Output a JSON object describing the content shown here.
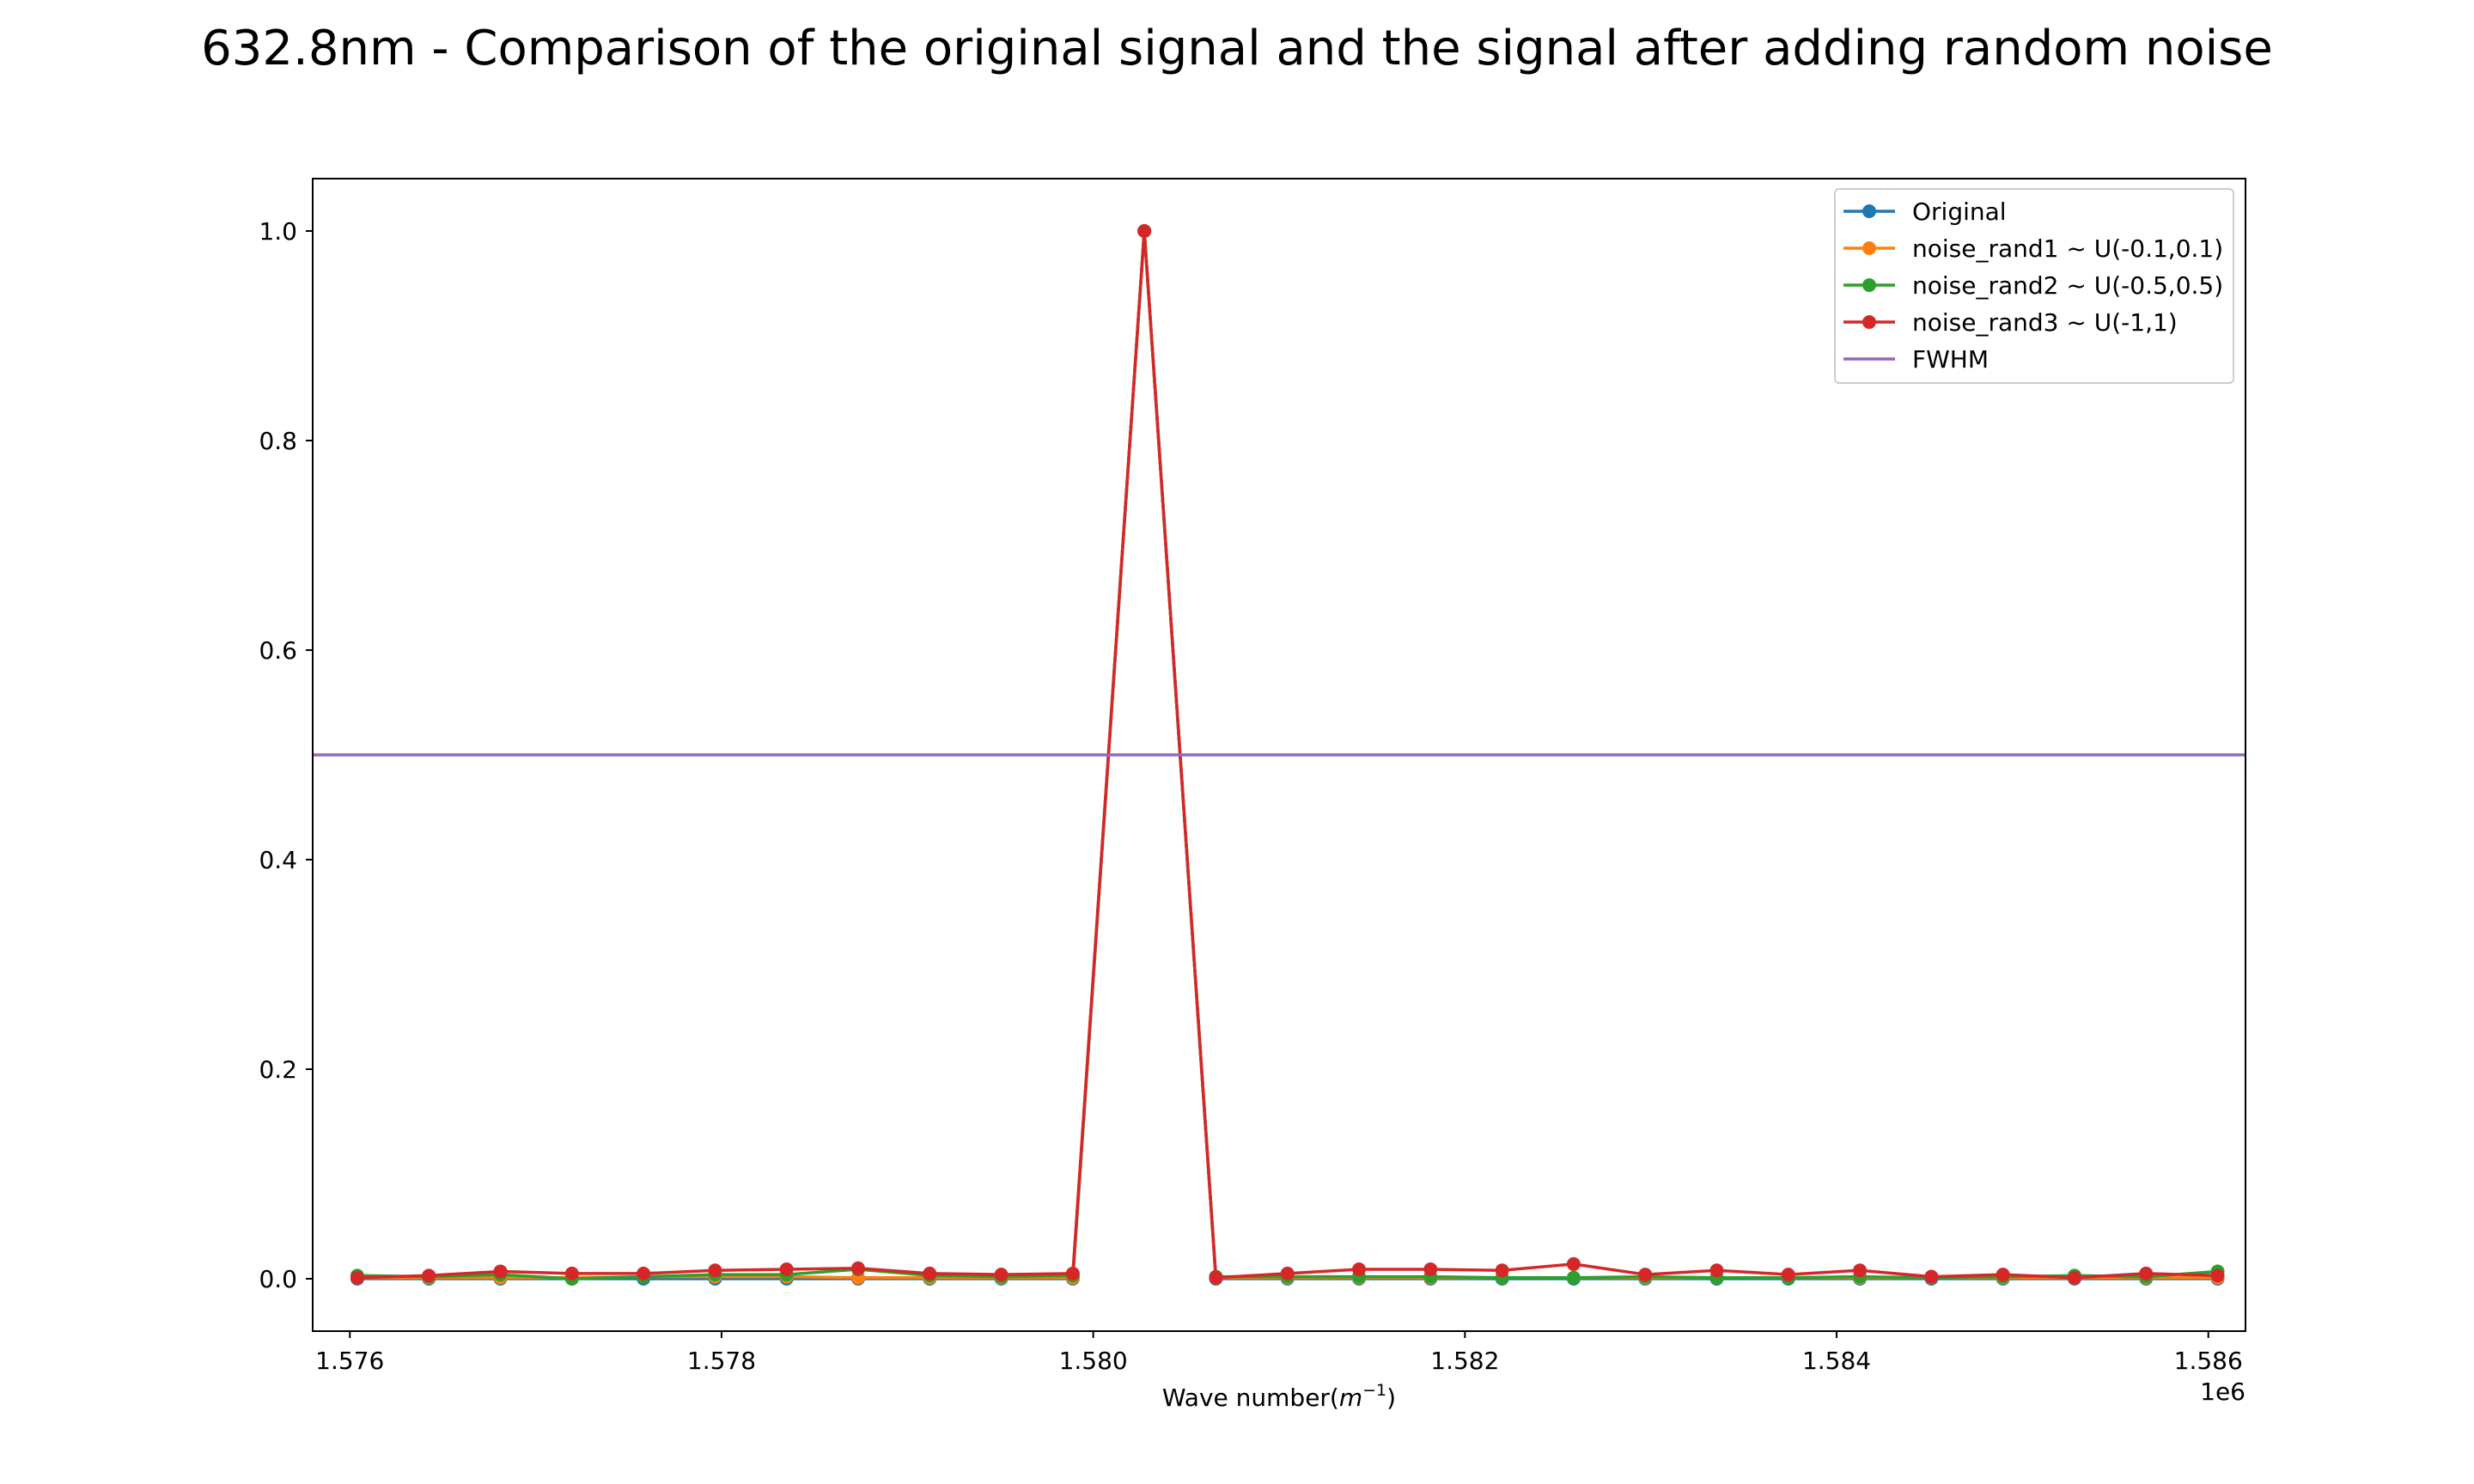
{
  "chart_data": {
    "type": "line",
    "title": "632.8nm - Comparison of the original signal and the signal after adding random noise",
    "xlabel": "Wave number(m⁻¹)",
    "xlabel_main": "Wave number(",
    "xlabel_var": "m",
    "xlabel_sup": "−1",
    "xlabel_close": ")",
    "ylabel": "",
    "x_offset_label": "1e6",
    "xlim": [
      1575800,
      1586200
    ],
    "ylim": [
      -0.05,
      1.05
    ],
    "x_ticks": [
      {
        "value": 1576000,
        "label": "1.576"
      },
      {
        "value": 1578000,
        "label": "1.578"
      },
      {
        "value": 1580000,
        "label": "1.580"
      },
      {
        "value": 1582000,
        "label": "1.582"
      },
      {
        "value": 1584000,
        "label": "1.584"
      },
      {
        "value": 1586000,
        "label": "1.586"
      }
    ],
    "y_ticks": [
      {
        "value": 0.0,
        "label": "0.0"
      },
      {
        "value": 0.2,
        "label": "0.2"
      },
      {
        "value": 0.4,
        "label": "0.4"
      },
      {
        "value": 0.6,
        "label": "0.6"
      },
      {
        "value": 0.8,
        "label": "0.8"
      },
      {
        "value": 1.0,
        "label": "1.0"
      }
    ],
    "grid": false,
    "legend_position": "top-right",
    "x": [
      1576040,
      1576425,
      1576810,
      1577195,
      1577580,
      1577965,
      1578350,
      1578735,
      1579120,
      1579505,
      1579890,
      1580275,
      1580660,
      1581045,
      1581430,
      1581815,
      1582200,
      1582585,
      1582970,
      1583355,
      1583740,
      1584125,
      1584510,
      1584895,
      1585280,
      1585665,
      1586050
    ],
    "series": [
      {
        "name": "Original",
        "color": "#1f77b4",
        "markers": true,
        "values": [
          0,
          0,
          0,
          0,
          0,
          0,
          0,
          0,
          0,
          0,
          0,
          1,
          0,
          0,
          0,
          0,
          0,
          0,
          0,
          0,
          0,
          0,
          0,
          0,
          0,
          0,
          0
        ]
      },
      {
        "name": "noise_rand1 ~ U(-0.1,0.1)",
        "color": "#ff7f0e",
        "markers": true,
        "values": [
          0.001,
          0.001,
          0.001,
          0.001,
          0.002,
          0.002,
          0.002,
          0.001,
          0.001,
          0.001,
          0.001,
          1,
          0.001,
          0.001,
          0.001,
          0.001,
          0.001,
          0.001,
          0.001,
          0.001,
          0.001,
          0.001,
          0.001,
          0.001,
          0.001,
          0.001,
          0.001
        ]
      },
      {
        "name": "noise_rand2 ~ U(-0.5,0.5)",
        "color": "#2ca02c",
        "markers": true,
        "values": [
          0.003,
          0.002,
          0.004,
          0.0,
          0.002,
          0.004,
          0.004,
          0.009,
          0.003,
          0.002,
          0.003,
          1,
          0.002,
          0.002,
          0.002,
          0.002,
          0.001,
          0.001,
          0.002,
          0.001,
          0.001,
          0.002,
          0.001,
          0.002,
          0.003,
          0.002,
          0.007
        ]
      },
      {
        "name": "noise_rand3 ~ U(-1,1)",
        "color": "#d62728",
        "markers": true,
        "values": [
          0.001,
          0.003,
          0.007,
          0.005,
          0.005,
          0.008,
          0.009,
          0.01,
          0.005,
          0.004,
          0.005,
          1,
          0.001,
          0.005,
          0.009,
          0.009,
          0.008,
          0.014,
          0.004,
          0.008,
          0.004,
          0.008,
          0.002,
          0.004,
          0.001,
          0.005,
          0.003
        ]
      },
      {
        "name": "FWHM",
        "color": "#9467bd",
        "markers": false,
        "type": "hline",
        "value": 0.5
      }
    ]
  }
}
